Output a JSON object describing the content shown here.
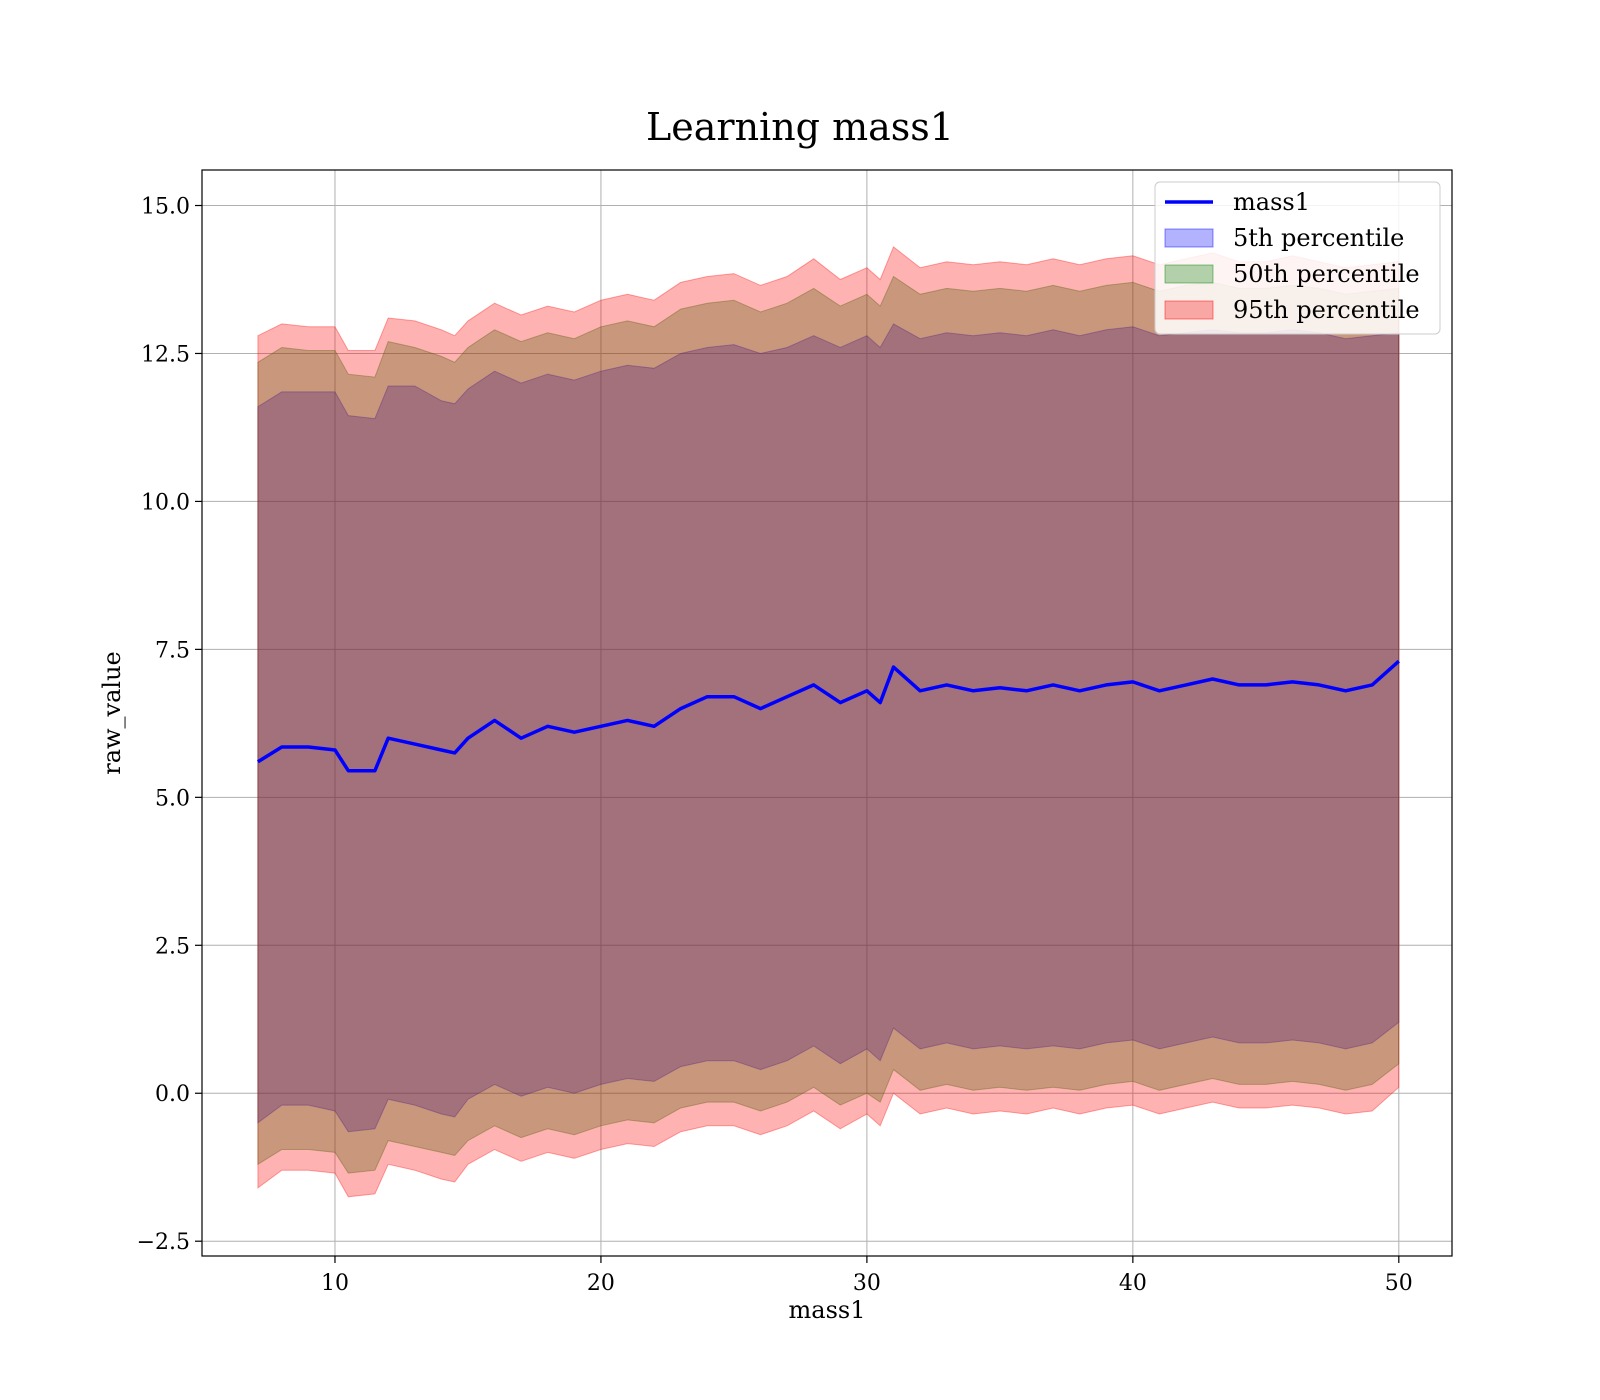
{
  "chart_data": {
    "type": "line",
    "title": "Learning mass1",
    "xlabel": "mass1",
    "ylabel": "raw_value",
    "xlim": [
      5,
      52
    ],
    "ylim": [
      -2.75,
      15.6
    ],
    "xticks": [
      10,
      20,
      30,
      40,
      50
    ],
    "yticks": [
      -2.5,
      0.0,
      2.5,
      5.0,
      7.5,
      10.0,
      12.5,
      15.0
    ],
    "xtick_labels": [
      "10",
      "20",
      "30",
      "40",
      "50"
    ],
    "ytick_labels": [
      "−2.5",
      "0.0",
      "2.5",
      "5.0",
      "7.5",
      "10.0",
      "12.5",
      "15.0"
    ],
    "grid": true,
    "legend_position": "top-right",
    "colors": {
      "line": "#0000ff",
      "band_5th": "#0000ff",
      "band_50th": "#008000",
      "band_95th": "#ff0000",
      "grid": "#b0b0b0"
    },
    "legend": [
      {
        "label": "mass1",
        "kind": "line",
        "color": "#0000ff"
      },
      {
        "label": "5th percentile",
        "kind": "patch",
        "color": "#0000ff"
      },
      {
        "label": "50th percentile",
        "kind": "patch",
        "color": "#008000"
      },
      {
        "label": "95th percentile",
        "kind": "patch",
        "color": "#ff0000"
      }
    ],
    "x": [
      7.1,
      8,
      9,
      10,
      10.5,
      11.5,
      12,
      13,
      14,
      14.5,
      15,
      16,
      17,
      18,
      19,
      20,
      21,
      22,
      23,
      24,
      25,
      26,
      27,
      28,
      29,
      30,
      30.5,
      31,
      32,
      33,
      34,
      35,
      36,
      37,
      38,
      39,
      40,
      41,
      42,
      43,
      44,
      45,
      46,
      47,
      48,
      49,
      50
    ],
    "series": [
      {
        "name": "mass1",
        "values": [
          5.6,
          5.85,
          5.85,
          5.8,
          5.45,
          5.45,
          6.0,
          5.9,
          5.8,
          5.75,
          6.0,
          6.3,
          6.0,
          6.2,
          6.1,
          6.2,
          6.3,
          6.2,
          6.5,
          6.7,
          6.7,
          6.5,
          6.7,
          6.9,
          6.6,
          6.8,
          6.6,
          7.2,
          6.8,
          6.9,
          6.8,
          6.85,
          6.8,
          6.9,
          6.8,
          6.9,
          6.95,
          6.8,
          6.9,
          7.0,
          6.9,
          6.9,
          6.95,
          6.9,
          6.8,
          6.9,
          7.3
        ]
      },
      {
        "name": "5th percentile",
        "lower": [
          -0.5,
          -0.2,
          -0.2,
          -0.3,
          -0.65,
          -0.6,
          -0.1,
          -0.2,
          -0.35,
          -0.4,
          -0.1,
          0.15,
          -0.05,
          0.1,
          0.0,
          0.15,
          0.25,
          0.2,
          0.45,
          0.55,
          0.55,
          0.4,
          0.55,
          0.8,
          0.5,
          0.75,
          0.55,
          1.1,
          0.75,
          0.85,
          0.75,
          0.8,
          0.75,
          0.8,
          0.75,
          0.85,
          0.9,
          0.75,
          0.85,
          0.95,
          0.85,
          0.85,
          0.9,
          0.85,
          0.75,
          0.85,
          1.2
        ],
        "upper": [
          11.6,
          11.85,
          11.85,
          11.85,
          11.45,
          11.4,
          11.95,
          11.95,
          11.7,
          11.65,
          11.9,
          12.2,
          12.0,
          12.15,
          12.05,
          12.2,
          12.3,
          12.25,
          12.5,
          12.6,
          12.65,
          12.5,
          12.6,
          12.8,
          12.6,
          12.8,
          12.6,
          13.0,
          12.75,
          12.85,
          12.8,
          12.85,
          12.8,
          12.9,
          12.8,
          12.9,
          12.95,
          12.8,
          12.85,
          12.9,
          12.85,
          12.85,
          12.9,
          12.85,
          12.75,
          12.8,
          12.85
        ]
      },
      {
        "name": "50th percentile",
        "lower": [
          -1.2,
          -0.95,
          -0.95,
          -1.0,
          -1.35,
          -1.3,
          -0.8,
          -0.9,
          -1.0,
          -1.05,
          -0.8,
          -0.55,
          -0.75,
          -0.6,
          -0.7,
          -0.55,
          -0.45,
          -0.5,
          -0.25,
          -0.15,
          -0.15,
          -0.3,
          -0.15,
          0.1,
          -0.2,
          0.0,
          -0.15,
          0.4,
          0.05,
          0.15,
          0.05,
          0.1,
          0.05,
          0.1,
          0.05,
          0.15,
          0.2,
          0.05,
          0.15,
          0.25,
          0.15,
          0.15,
          0.2,
          0.15,
          0.05,
          0.15,
          0.5
        ],
        "upper": [
          12.35,
          12.6,
          12.55,
          12.55,
          12.15,
          12.1,
          12.7,
          12.6,
          12.45,
          12.35,
          12.6,
          12.9,
          12.7,
          12.85,
          12.75,
          12.95,
          13.05,
          12.95,
          13.25,
          13.35,
          13.4,
          13.2,
          13.35,
          13.6,
          13.3,
          13.5,
          13.3,
          13.8,
          13.5,
          13.6,
          13.55,
          13.6,
          13.55,
          13.65,
          13.55,
          13.65,
          13.7,
          13.55,
          13.65,
          13.7,
          13.6,
          13.6,
          13.65,
          13.6,
          13.5,
          13.55,
          13.6
        ]
      },
      {
        "name": "95th percentile",
        "lower": [
          -1.6,
          -1.3,
          -1.3,
          -1.35,
          -1.75,
          -1.7,
          -1.2,
          -1.3,
          -1.45,
          -1.5,
          -1.2,
          -0.95,
          -1.15,
          -1.0,
          -1.1,
          -0.95,
          -0.85,
          -0.9,
          -0.65,
          -0.55,
          -0.55,
          -0.7,
          -0.55,
          -0.3,
          -0.6,
          -0.35,
          -0.55,
          0.0,
          -0.35,
          -0.25,
          -0.35,
          -0.3,
          -0.35,
          -0.25,
          -0.35,
          -0.25,
          -0.2,
          -0.35,
          -0.25,
          -0.15,
          -0.25,
          -0.25,
          -0.2,
          -0.25,
          -0.35,
          -0.3,
          0.1
        ],
        "upper": [
          12.8,
          13.0,
          12.95,
          12.95,
          12.55,
          12.55,
          13.1,
          13.05,
          12.9,
          12.8,
          13.05,
          13.35,
          13.15,
          13.3,
          13.2,
          13.4,
          13.5,
          13.4,
          13.7,
          13.8,
          13.85,
          13.65,
          13.8,
          14.1,
          13.75,
          13.95,
          13.75,
          14.3,
          13.95,
          14.05,
          14.0,
          14.05,
          14.0,
          14.1,
          14.0,
          14.1,
          14.15,
          14.0,
          14.1,
          14.2,
          14.05,
          14.05,
          14.15,
          14.05,
          13.95,
          14.0,
          14.05
        ]
      }
    ]
  }
}
